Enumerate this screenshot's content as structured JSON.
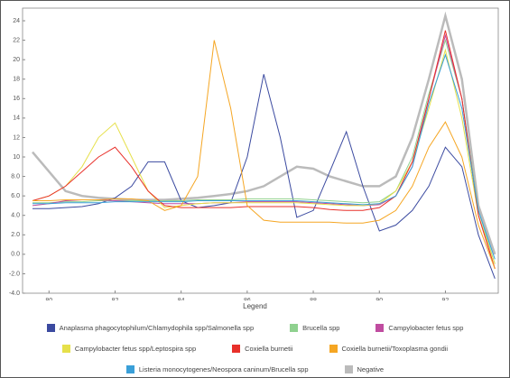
{
  "chart_data": {
    "type": "line",
    "legend_title": "Legend",
    "x": [
      79.5,
      80,
      80.5,
      81,
      81.5,
      82,
      82.5,
      83,
      83.5,
      84,
      84.5,
      85,
      85.5,
      86,
      86.5,
      87,
      87.5,
      88,
      88.5,
      89,
      89.5,
      90,
      90.5,
      91,
      91.5,
      92,
      92.5,
      93,
      93.5
    ],
    "series": [
      {
        "name": "Anaplasma phagocytophilum/Chlamydophila spp/Salmonella spp",
        "color": "#3b4aa0",
        "values": [
          4.7,
          4.7,
          4.8,
          4.9,
          5.2,
          5.8,
          7,
          9.5,
          9.5,
          5.5,
          4.8,
          5,
          5.3,
          10,
          18.5,
          12,
          3.8,
          4.5,
          8.5,
          12.6,
          7,
          2.4,
          3,
          4.5,
          7,
          11,
          9,
          2,
          -2.5
        ]
      },
      {
        "name": "Brucella spp",
        "color": "#8fd18f",
        "values": [
          5.3,
          5.3,
          5.4,
          5.4,
          5.5,
          5.5,
          5.5,
          5.5,
          5.5,
          5.5,
          5.6,
          5.6,
          5.6,
          5.7,
          5.7,
          5.7,
          5.7,
          5.6,
          5.5,
          5.4,
          5.3,
          5.4,
          6.5,
          10,
          16.5,
          22,
          16,
          4.5,
          -1
        ]
      },
      {
        "name": "Campylobacter fetus spp",
        "color": "#c04ca0",
        "values": [
          5,
          5.2,
          5.5,
          5.6,
          5.6,
          5.5,
          5.4,
          5.3,
          5.2,
          5.2,
          5.2,
          5.3,
          5.3,
          5.4,
          5.4,
          5.4,
          5.4,
          5.3,
          5.2,
          5.1,
          5,
          5.1,
          6,
          9,
          16,
          22.5,
          16,
          4,
          -1.5
        ]
      },
      {
        "name": "Campylobacter fetus spp/Leptospira spp",
        "color": "#e6e04a",
        "values": [
          5.5,
          6,
          7,
          9,
          12,
          13.5,
          10,
          6.5,
          4.8,
          5,
          5.2,
          5.3,
          5.3,
          5.3,
          5.3,
          5.3,
          5.3,
          5.2,
          5.1,
          5,
          5,
          5.2,
          6.5,
          9.5,
          15,
          21,
          14,
          4,
          -1
        ]
      },
      {
        "name": "Coxiella burnetii",
        "color": "#e8302a",
        "values": [
          5.5,
          6,
          7,
          8.5,
          10,
          11,
          9,
          6.5,
          5,
          4.8,
          4.8,
          4.8,
          4.8,
          4.9,
          4.9,
          4.9,
          4.9,
          4.8,
          4.6,
          4.5,
          4.5,
          4.8,
          6,
          9.5,
          16,
          23,
          16,
          4,
          -1.5
        ]
      },
      {
        "name": "Coxiella burnetii/Toxoplasma gondii",
        "color": "#f5a623",
        "values": [
          5.5,
          5.5,
          5.6,
          5.6,
          5.6,
          5.7,
          5.7,
          5.5,
          4.5,
          5,
          8,
          22,
          15,
          5,
          3.5,
          3.3,
          3.3,
          3.3,
          3.3,
          3.2,
          3.2,
          3.5,
          4.5,
          7,
          11,
          13.6,
          10,
          3,
          -1.5
        ]
      },
      {
        "name": "Listeria monocytogenes/Neospora caninum/Brucella spp",
        "color": "#3a9fd8",
        "values": [
          5.2,
          5.2,
          5.3,
          5.3,
          5.3,
          5.4,
          5.4,
          5.4,
          5.4,
          5.4,
          5.5,
          5.5,
          5.5,
          5.5,
          5.5,
          5.5,
          5.5,
          5.4,
          5.3,
          5.2,
          5.1,
          5.2,
          6,
          9,
          15.5,
          20.5,
          15,
          4.5,
          -0.5
        ]
      },
      {
        "name": "Negative",
        "color": "#bbbbbb",
        "values": [
          10.5,
          8.5,
          6.5,
          6,
          5.8,
          5.7,
          5.6,
          5.6,
          5.6,
          5.7,
          5.8,
          6,
          6.2,
          6.5,
          7,
          8,
          9,
          8.8,
          8,
          7.5,
          7,
          7,
          8,
          12,
          18,
          24.5,
          18,
          5,
          0
        ]
      }
    ],
    "xlim": [
      79.2,
      93.6
    ],
    "xticks": [
      80,
      82,
      84,
      86,
      88,
      90,
      92
    ],
    "ylim": [
      -4,
      25.3
    ],
    "yticks": [
      24,
      22,
      20,
      18,
      16,
      14,
      12,
      10,
      {
        "value": 8,
        "label": "8.0"
      },
      {
        "value": 6,
        "label": "6.0"
      },
      {
        "value": 4,
        "label": "4.0"
      },
      {
        "value": 2,
        "label": "2.0"
      },
      {
        "value": 0,
        "label": "0.0"
      },
      {
        "value": -2,
        "label": "-2.0"
      },
      {
        "value": -4,
        "label": "-4.0"
      }
    ]
  }
}
